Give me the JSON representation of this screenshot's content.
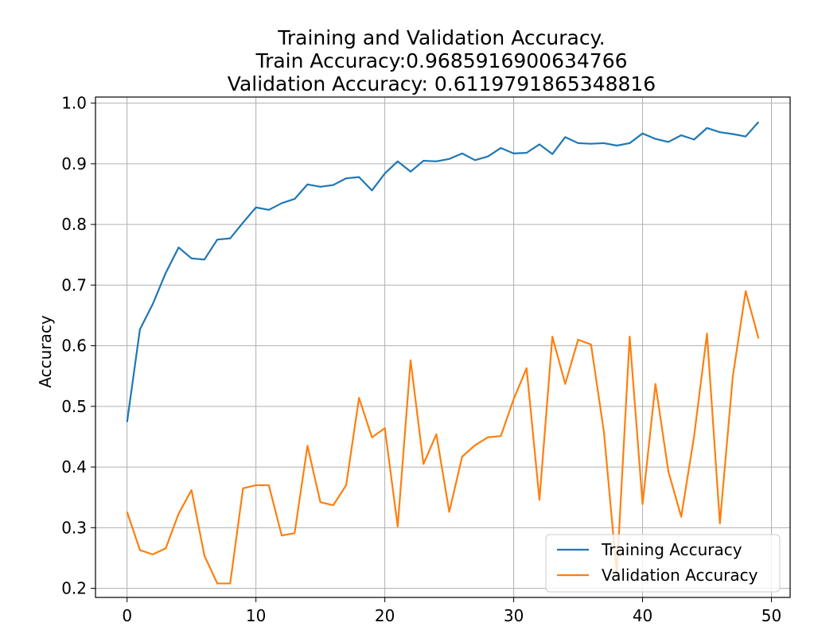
{
  "chart_data": {
    "type": "line",
    "title": "Training and Validation Accuracy.\nTrain Accuracy:0.9685916900634766\n Validation Accuracy: 0.6119791865348816",
    "title_lines": [
      "Training and Validation Accuracy.",
      "Train Accuracy:0.9685916900634766",
      "Validation Accuracy: 0.6119791865348816"
    ],
    "xlabel": "",
    "ylabel": "Accuracy",
    "xlim": [
      -2.45,
      51.45
    ],
    "ylim": [
      0.185,
      1.01
    ],
    "xticks": [
      0,
      10,
      20,
      30,
      40,
      50
    ],
    "xtick_labels": [
      "0",
      "10",
      "20",
      "30",
      "40",
      "50"
    ],
    "yticks": [
      0.2,
      0.3,
      0.4,
      0.5,
      0.6,
      0.7,
      0.8,
      0.9,
      1.0
    ],
    "ytick_labels": [
      "0.2",
      "0.3",
      "0.4",
      "0.5",
      "0.6",
      "0.7",
      "0.8",
      "0.9",
      "1.0"
    ],
    "grid": true,
    "legend_position": "lower right",
    "x": [
      0,
      1,
      2,
      3,
      4,
      5,
      6,
      7,
      8,
      9,
      10,
      11,
      12,
      13,
      14,
      15,
      16,
      17,
      18,
      19,
      20,
      21,
      22,
      23,
      24,
      25,
      26,
      27,
      28,
      29,
      30,
      31,
      32,
      33,
      34,
      35,
      36,
      37,
      38,
      39,
      40,
      41,
      42,
      43,
      44,
      45,
      46,
      47,
      48,
      49
    ],
    "series": [
      {
        "name": "Training Accuracy",
        "color": "#1f77b4",
        "values": [
          0.474,
          0.627,
          0.669,
          0.72,
          0.762,
          0.744,
          0.742,
          0.775,
          0.777,
          0.803,
          0.828,
          0.824,
          0.835,
          0.842,
          0.866,
          0.862,
          0.865,
          0.876,
          0.878,
          0.856,
          0.884,
          0.904,
          0.887,
          0.905,
          0.904,
          0.908,
          0.917,
          0.906,
          0.912,
          0.926,
          0.917,
          0.918,
          0.932,
          0.916,
          0.944,
          0.934,
          0.933,
          0.934,
          0.93,
          0.934,
          0.95,
          0.941,
          0.936,
          0.947,
          0.94,
          0.959,
          0.952,
          0.949,
          0.945,
          0.969
        ]
      },
      {
        "name": "Validation Accuracy",
        "color": "#ff7f0e",
        "values": [
          0.326,
          0.263,
          0.256,
          0.266,
          0.323,
          0.362,
          0.254,
          0.208,
          0.208,
          0.365,
          0.37,
          0.37,
          0.287,
          0.291,
          0.435,
          0.342,
          0.337,
          0.37,
          0.514,
          0.449,
          0.464,
          0.302,
          0.576,
          0.405,
          0.454,
          0.326,
          0.417,
          0.436,
          0.449,
          0.451,
          0.512,
          0.563,
          0.346,
          0.615,
          0.537,
          0.61,
          0.602,
          0.458,
          0.225,
          0.615,
          0.339,
          0.537,
          0.393,
          0.318,
          0.451,
          0.62,
          0.307,
          0.549,
          0.69,
          0.612
        ]
      }
    ]
  }
}
